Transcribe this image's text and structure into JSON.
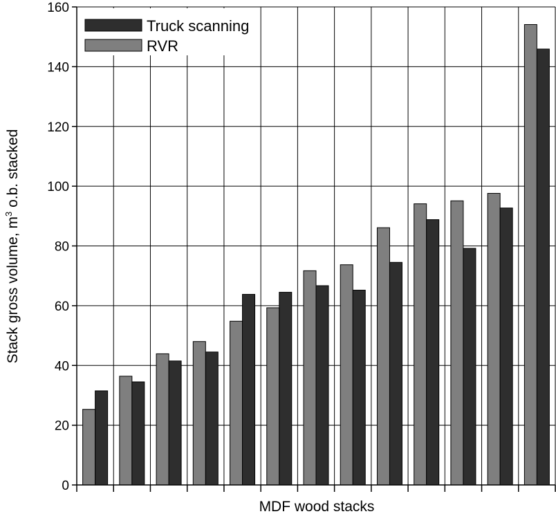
{
  "chart_data": {
    "type": "bar",
    "xlabel": "MDF wood stacks",
    "ylabel": "Stack gross volume, m",
    "ylabel_superscript": "3",
    "ylabel_suffix": " o.b. stacked",
    "ylim": [
      0,
      160
    ],
    "yticks": [
      0,
      20,
      40,
      60,
      80,
      100,
      120,
      140,
      160
    ],
    "grid": true,
    "legend_position": "top-left",
    "categories": [
      "",
      "",
      "",
      "",
      "",
      "",
      "",
      "",
      "",
      "",
      "",
      "",
      ""
    ],
    "series": [
      {
        "name": "Truck scanning",
        "color": "#2e2e2e",
        "values": [
          31.5,
          34.5,
          41.5,
          44.5,
          63.8,
          64.5,
          66.7,
          65.2,
          74.5,
          88.8,
          79.2,
          92.7,
          145.9
        ]
      },
      {
        "name": "RVR",
        "color": "#7f7f7f",
        "values": [
          25.3,
          36.4,
          43.9,
          48.0,
          54.8,
          59.3,
          71.7,
          73.7,
          86.1,
          94.1,
          95.1,
          97.6,
          154.1
        ]
      }
    ]
  }
}
